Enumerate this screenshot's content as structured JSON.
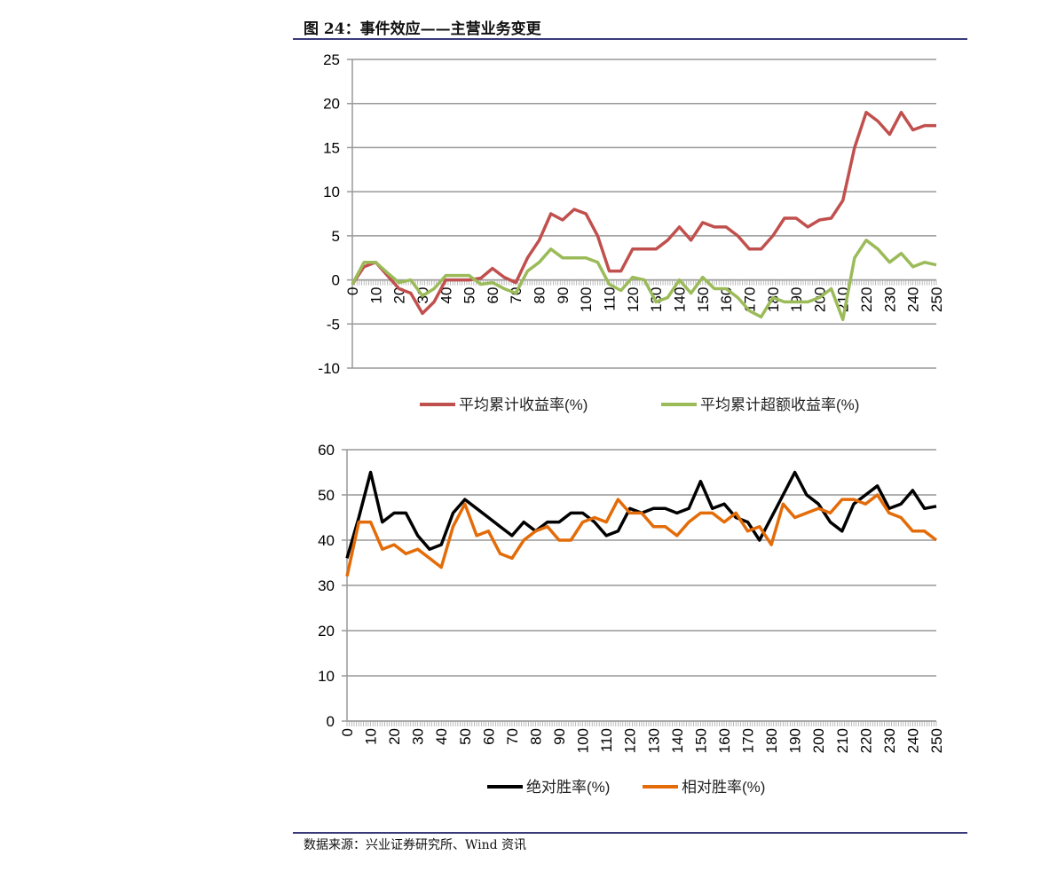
{
  "title": "图 24：事件效应——主营业务变更",
  "source": "数据来源：兴业证券研究所、Wind 资讯",
  "chart_data": [
    {
      "type": "line",
      "x": [
        0,
        5,
        10,
        15,
        20,
        25,
        30,
        35,
        40,
        45,
        50,
        55,
        60,
        65,
        70,
        75,
        80,
        85,
        90,
        95,
        100,
        105,
        110,
        115,
        120,
        125,
        130,
        135,
        140,
        145,
        150,
        155,
        160,
        165,
        170,
        175,
        180,
        185,
        190,
        195,
        200,
        205,
        210,
        215,
        220,
        225,
        230,
        235,
        240,
        245,
        250
      ],
      "ylim": [
        -10,
        25
      ],
      "yticks": [
        -10,
        -5,
        0,
        5,
        10,
        15,
        20,
        25
      ],
      "xlim": [
        0,
        250
      ],
      "xticks": [
        0,
        10,
        20,
        30,
        40,
        50,
        60,
        70,
        80,
        90,
        100,
        110,
        120,
        130,
        140,
        150,
        160,
        170,
        180,
        190,
        200,
        210,
        220,
        230,
        240,
        250
      ],
      "grid": true,
      "legend": "bottom",
      "series": [
        {
          "name": "平均累计收益率(%)",
          "color": "#c0504d",
          "values": [
            -0.5,
            1.5,
            2,
            0.5,
            -1,
            -1.5,
            -3.8,
            -2.5,
            0,
            0,
            0,
            0.2,
            1.3,
            0.3,
            -0.3,
            2.5,
            4.5,
            7.5,
            6.8,
            8,
            7.5,
            5,
            1,
            1,
            3.5,
            3.5,
            3.5,
            4.5,
            6,
            4.5,
            6.5,
            6,
            6,
            5,
            3.5,
            3.5,
            5,
            7,
            7,
            6,
            6.8,
            7,
            9,
            15,
            19,
            18,
            16.5,
            19,
            17,
            17.5,
            17.5
          ]
        },
        {
          "name": "平均累计超额收益率(%)",
          "color": "#9bbb59",
          "values": [
            -0.5,
            2,
            2,
            0.8,
            -0.3,
            0,
            -1.8,
            -1,
            0.5,
            0.5,
            0.5,
            -0.5,
            -0.3,
            -1,
            -1.5,
            1,
            2,
            3.5,
            2.5,
            2.5,
            2.5,
            2,
            -0.5,
            -1.2,
            0.3,
            0,
            -2.5,
            -2,
            0,
            -1.5,
            0.3,
            -1,
            -1,
            -2,
            -3.5,
            -4.2,
            -2,
            -2.5,
            -2.5,
            -2.5,
            -2,
            -1,
            -4.5,
            2.5,
            4.5,
            3.5,
            2,
            3,
            1.5,
            2,
            1.7
          ]
        }
      ]
    },
    {
      "type": "line",
      "x": [
        0,
        5,
        10,
        15,
        20,
        25,
        30,
        35,
        40,
        45,
        50,
        55,
        60,
        65,
        70,
        75,
        80,
        85,
        90,
        95,
        100,
        105,
        110,
        115,
        120,
        125,
        130,
        135,
        140,
        145,
        150,
        155,
        160,
        165,
        170,
        175,
        180,
        185,
        190,
        195,
        200,
        205,
        210,
        215,
        220,
        225,
        230,
        235,
        240,
        245,
        250
      ],
      "ylim": [
        0,
        60
      ],
      "yticks": [
        0,
        10,
        20,
        30,
        40,
        50,
        60
      ],
      "xlim": [
        0,
        250
      ],
      "xticks": [
        0,
        10,
        20,
        30,
        40,
        50,
        60,
        70,
        80,
        90,
        100,
        110,
        120,
        130,
        140,
        150,
        160,
        170,
        180,
        190,
        200,
        210,
        220,
        230,
        240,
        250
      ],
      "grid": true,
      "legend": "bottom",
      "series": [
        {
          "name": "绝对胜率(%)",
          "color": "#000000",
          "values": [
            36,
            45,
            55,
            44,
            46,
            46,
            41,
            38,
            39,
            46,
            49,
            47,
            45,
            43,
            41,
            44,
            42,
            44,
            44,
            46,
            46,
            44,
            41,
            42,
            47,
            46,
            47,
            47,
            46,
            47,
            53,
            47,
            48,
            45,
            44,
            40,
            45,
            50,
            55,
            50,
            48,
            44,
            42,
            48,
            50,
            52,
            47,
            48,
            51,
            47,
            47.5
          ]
        },
        {
          "name": "相对胜率(%)",
          "color": "#e36c09",
          "values": [
            32,
            44,
            44,
            38,
            39,
            37,
            38,
            36,
            34,
            43,
            48,
            41,
            42,
            37,
            36,
            40,
            42,
            43,
            40,
            40,
            44,
            45,
            44,
            49,
            46,
            46,
            43,
            43,
            41,
            44,
            46,
            46,
            44,
            46,
            42,
            43,
            39,
            48,
            45,
            46,
            47,
            46,
            49,
            49,
            48,
            50,
            46,
            45,
            42,
            42,
            40
          ]
        }
      ]
    }
  ]
}
